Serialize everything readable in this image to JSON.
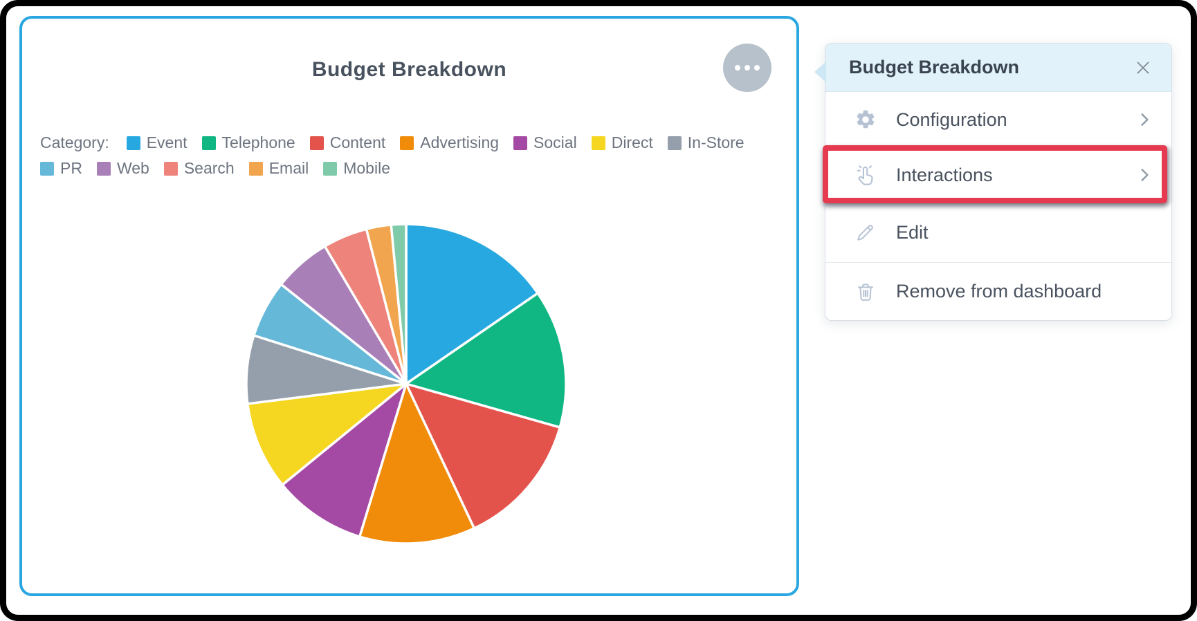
{
  "card": {
    "title": "Budget Breakdown"
  },
  "chart_data": {
    "type": "pie",
    "title": "Budget Breakdown",
    "legend_label": "Category:",
    "legend_position": "top",
    "values_unit": "percent",
    "start_angle_deg": 0,
    "direction": "clockwise",
    "series": [
      {
        "name": "Event",
        "value": 15.4,
        "color": "#28a8e0"
      },
      {
        "name": "Telephone",
        "value": 14.0,
        "color": "#10b783"
      },
      {
        "name": "Content",
        "value": 13.6,
        "color": "#e3534c"
      },
      {
        "name": "Advertising",
        "value": 11.7,
        "color": "#f08c0a"
      },
      {
        "name": "Social",
        "value": 9.4,
        "color": "#a44aa4"
      },
      {
        "name": "Direct",
        "value": 8.9,
        "color": "#f5d621"
      },
      {
        "name": "In-Store",
        "value": 6.9,
        "color": "#959eab"
      },
      {
        "name": "PR",
        "value": 5.8,
        "color": "#66b8d9"
      },
      {
        "name": "Web",
        "value": 5.8,
        "color": "#a97fb8"
      },
      {
        "name": "Search",
        "value": 4.5,
        "color": "#ee837c"
      },
      {
        "name": "Email",
        "value": 2.5,
        "color": "#f1a54e"
      },
      {
        "name": "Mobile",
        "value": 1.5,
        "color": "#7ecaa9"
      }
    ]
  },
  "menu": {
    "title": "Budget Breakdown",
    "items": [
      {
        "label": "Configuration",
        "icon": "gear-icon",
        "chevron": true,
        "highlighted": false
      },
      {
        "label": "Interactions",
        "icon": "tap-icon",
        "chevron": true,
        "highlighted": true
      },
      {
        "label": "Edit",
        "icon": "pencil-icon",
        "chevron": false,
        "highlighted": false
      },
      {
        "label": "Remove from dashboard",
        "icon": "trash-icon",
        "chevron": false,
        "highlighted": false
      }
    ],
    "highlight_color": "#e63a50"
  },
  "colors": {
    "card_border": "#2aa6e0",
    "menu_header_bg": "#e1f2fa",
    "menu_text": "#49525e",
    "legend_text": "#6d7480",
    "icon_gray": "#b6c2d4",
    "more_button_bg": "#b7c1cb",
    "frame": "#000000"
  }
}
